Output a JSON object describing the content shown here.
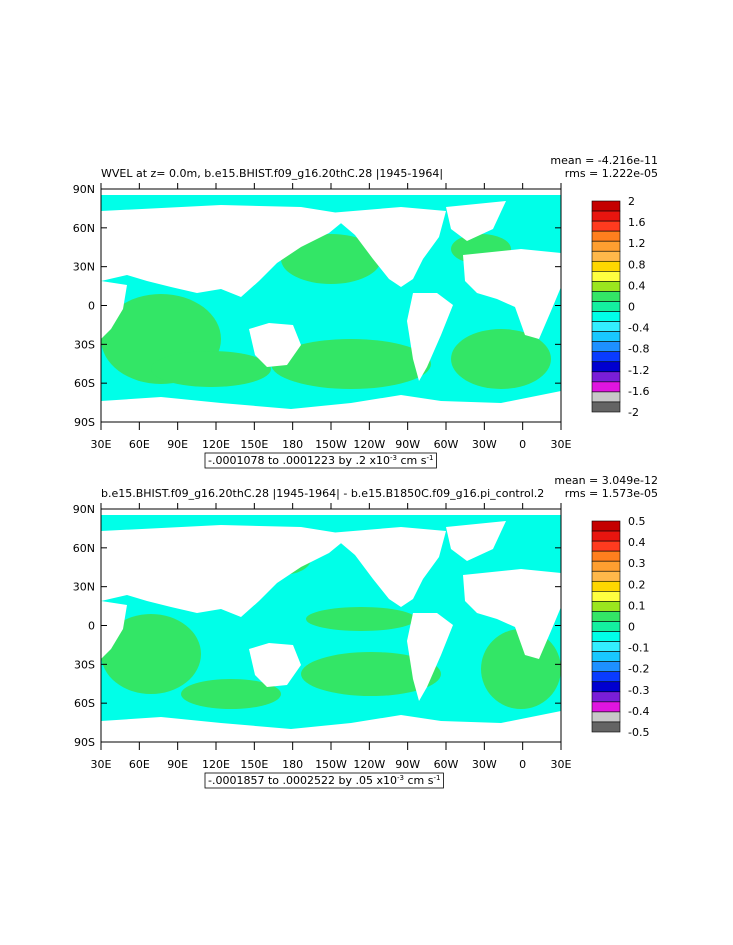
{
  "panels": [
    {
      "title": "WVEL at z=    0.0m, b.e15.BHIST.f09_g16.20thC.28 |1945-1964|",
      "mean": "mean = -4.216e-11",
      "rms": "rms = 1.222e-05",
      "lat_labels": [
        "90N",
        "60N",
        "30N",
        "0",
        "30S",
        "60S",
        "90S"
      ],
      "lon_labels": [
        "30E",
        "60E",
        "90E",
        "120E",
        "150E",
        "180",
        "150W",
        "120W",
        "90W",
        "60W",
        "30W",
        "0",
        "30E"
      ],
      "colorbar": {
        "labels": [
          2,
          1.6,
          1.2,
          0.8,
          0.4,
          0,
          -0.4,
          -0.8,
          -1.2,
          -1.6,
          -2
        ],
        "colors": [
          "#c40000",
          "#e8150f",
          "#ff3b1f",
          "#ff7f1e",
          "#ff9f30",
          "#ffb84a",
          "#ffd700",
          "#ffff40",
          "#9be61e",
          "#33e666",
          "#14f0a0",
          "#00ffe8",
          "#33eeff",
          "#19c8ff",
          "#1e90ff",
          "#0a3cff",
          "#0000d0",
          "#7a1ed8",
          "#e015e0",
          "#c8c8c8",
          "#646464"
        ]
      },
      "range": {
        "text": "-.0001078 to .0001223 by .2 x10",
        "exp": "-3",
        "unit": " cm s",
        "unit_exp": "-1"
      }
    },
    {
      "title": "b.e15.BHIST.f09_g16.20thC.28 |1945-1964| - b.e15.B1850C.f09_g16.pi_control.2",
      "mean": "mean = 3.049e-12",
      "rms": "rms = 1.573e-05",
      "lat_labels": [
        "90N",
        "60N",
        "30N",
        "0",
        "30S",
        "60S",
        "90S"
      ],
      "lon_labels": [
        "30E",
        "60E",
        "90E",
        "120E",
        "150E",
        "180",
        "150W",
        "120W",
        "90W",
        "60W",
        "30W",
        "0",
        "30E"
      ],
      "colorbar": {
        "labels": [
          0.5,
          0.4,
          0.3,
          0.2,
          0.1,
          0,
          -0.1,
          -0.2,
          -0.3,
          -0.4,
          -0.5
        ],
        "colors": [
          "#c40000",
          "#e8150f",
          "#ff3b1f",
          "#ff7f1e",
          "#ff9f30",
          "#ffb84a",
          "#ffd700",
          "#ffff40",
          "#9be61e",
          "#33e666",
          "#14f0a0",
          "#00ffe8",
          "#33eeff",
          "#19c8ff",
          "#1e90ff",
          "#0a3cff",
          "#0000d0",
          "#7a1ed8",
          "#e015e0",
          "#c8c8c8",
          "#646464"
        ]
      },
      "range": {
        "text": "-.0001857 to .0002522 by .05 x10",
        "exp": "-3",
        "unit": " cm s",
        "unit_exp": "-1"
      }
    }
  ]
}
